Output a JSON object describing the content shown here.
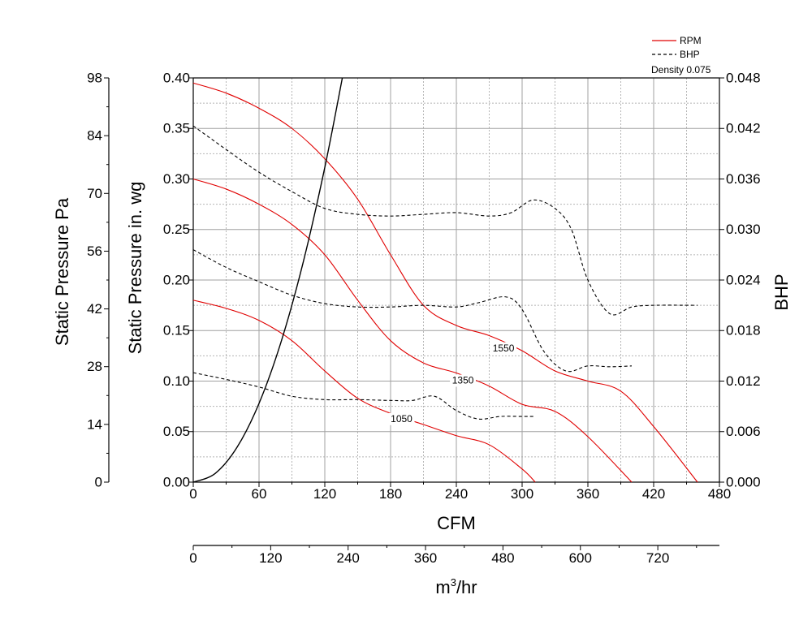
{
  "chart_data": {
    "type": "line",
    "title": "",
    "xlabel": "CFM",
    "x2label_main": "m",
    "x2label_sup": "3",
    "x2label_tail": "/hr",
    "ylabel": "Static Pressure in. wg",
    "y_outer_label": "Static Pressure Pa",
    "y2label": "BHP",
    "xlim": [
      0,
      480
    ],
    "ylim": [
      0,
      0.4
    ],
    "y2lim": [
      0,
      0.048
    ],
    "y_outer_lim": [
      0,
      98
    ],
    "x2lim": [
      0,
      815.5
    ],
    "xticks": [
      "0",
      "60",
      "120",
      "180",
      "240",
      "300",
      "360",
      "420",
      "480"
    ],
    "yticks": [
      "0.00",
      "0.05",
      "0.10",
      "0.15",
      "0.20",
      "0.25",
      "0.30",
      "0.35",
      "0.40"
    ],
    "y2ticks": [
      "0.000",
      "0.006",
      "0.012",
      "0.018",
      "0.024",
      "0.030",
      "0.036",
      "0.042",
      "0.048"
    ],
    "y_outer_ticks": [
      "0",
      "14",
      "28",
      "42",
      "56",
      "70",
      "84",
      "98"
    ],
    "x2ticks": [
      "0",
      "120",
      "240",
      "360",
      "480",
      "600",
      "720"
    ],
    "grid": true,
    "legend": {
      "position": "top-right",
      "entries": [
        {
          "label": "RPM",
          "style": "solid",
          "color": "#e00000"
        },
        {
          "label": "BHP",
          "style": "dashed",
          "color": "#000000"
        }
      ],
      "note": "Density 0.075"
    },
    "series": [
      {
        "name": "1550",
        "kind": "rpm",
        "color": "#e00000",
        "x": [
          0,
          30,
          60,
          90,
          120,
          150,
          180,
          210,
          240,
          270,
          300,
          330,
          360,
          390,
          420,
          460
        ],
        "y": [
          0.395,
          0.385,
          0.37,
          0.35,
          0.32,
          0.28,
          0.225,
          0.175,
          0.155,
          0.145,
          0.13,
          0.11,
          0.1,
          0.09,
          0.055,
          0.0
        ]
      },
      {
        "name": "1350",
        "kind": "rpm",
        "color": "#e00000",
        "x": [
          0,
          30,
          60,
          90,
          120,
          150,
          180,
          210,
          240,
          270,
          300,
          330,
          360,
          400
        ],
        "y": [
          0.3,
          0.29,
          0.275,
          0.255,
          0.225,
          0.18,
          0.14,
          0.118,
          0.108,
          0.095,
          0.077,
          0.07,
          0.045,
          0.0
        ]
      },
      {
        "name": "1050",
        "kind": "rpm",
        "color": "#e00000",
        "x": [
          0,
          30,
          60,
          90,
          120,
          150,
          180,
          210,
          240,
          270,
          300,
          312
        ],
        "y": [
          0.18,
          0.172,
          0.16,
          0.14,
          0.11,
          0.083,
          0.068,
          0.057,
          0.046,
          0.037,
          0.013,
          0.0
        ]
      },
      {
        "name": "BHP 1550",
        "kind": "bhp",
        "color": "#000000",
        "x": [
          0,
          30,
          60,
          90,
          120,
          150,
          180,
          210,
          240,
          270,
          290,
          310,
          330,
          345,
          360,
          380,
          400,
          420,
          460
        ],
        "y": [
          0.0423,
          0.0395,
          0.0368,
          0.0345,
          0.0325,
          0.0318,
          0.0316,
          0.0318,
          0.032,
          0.0316,
          0.032,
          0.0335,
          0.0325,
          0.03,
          0.024,
          0.02,
          0.0208,
          0.021,
          0.021
        ]
      },
      {
        "name": "BHP 1350",
        "kind": "bhp",
        "color": "#000000",
        "x": [
          0,
          30,
          60,
          90,
          120,
          150,
          180,
          210,
          240,
          260,
          285,
          300,
          320,
          340,
          360,
          380,
          400
        ],
        "y": [
          0.0276,
          0.0255,
          0.0238,
          0.0222,
          0.0212,
          0.0208,
          0.0208,
          0.021,
          0.0208,
          0.0213,
          0.022,
          0.0205,
          0.0155,
          0.0132,
          0.0138,
          0.0137,
          0.0138
        ]
      },
      {
        "name": "BHP 1050",
        "kind": "bhp",
        "color": "#000000",
        "x": [
          0,
          30,
          60,
          90,
          120,
          150,
          180,
          200,
          220,
          240,
          260,
          280,
          300,
          312
        ],
        "y": [
          0.013,
          0.0122,
          0.0113,
          0.0102,
          0.0098,
          0.0098,
          0.0097,
          0.0097,
          0.0102,
          0.0085,
          0.0075,
          0.0078,
          0.0078,
          0.0078
        ]
      },
      {
        "name": "system",
        "kind": "system",
        "color": "#000000",
        "x": [
          0,
          20,
          40,
          60,
          80,
          100,
          120,
          136
        ],
        "y": [
          0.0,
          0.0086,
          0.0346,
          0.0779,
          0.1384,
          0.2163,
          0.3114,
          0.4
        ]
      }
    ],
    "rpm_labels": [
      {
        "text": "1550",
        "x": 283,
        "y": 0.132
      },
      {
        "text": "1350",
        "x": 246,
        "y": 0.1
      },
      {
        "text": "1050",
        "x": 190,
        "y": 0.062
      }
    ]
  }
}
